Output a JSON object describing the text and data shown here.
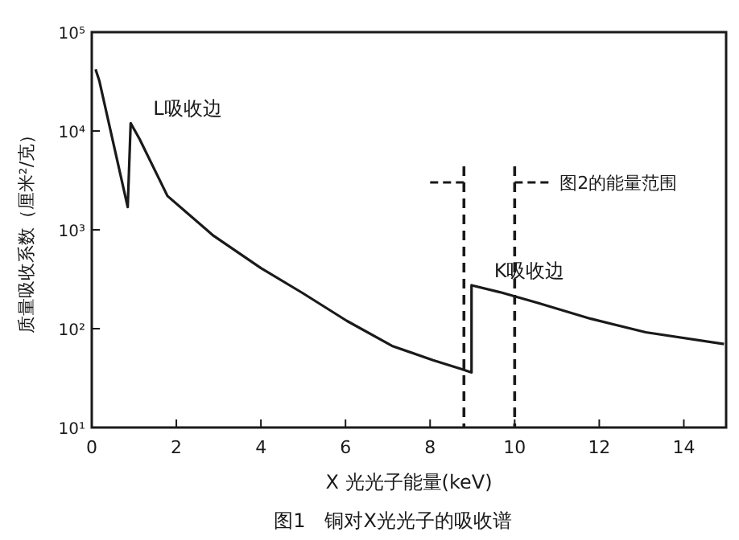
{
  "chart_data": {
    "type": "line",
    "xlabel": "X 光光子能量(keV)",
    "ylabel": "质量吸收系数（厘米²/克）",
    "log": "y",
    "xlim": [
      0,
      15
    ],
    "ylim": [
      10,
      100000
    ],
    "xticks": [
      0,
      2,
      4,
      6,
      8,
      10,
      12,
      14
    ],
    "yticks": [
      {
        "value": 10,
        "label": "10¹"
      },
      {
        "value": 100,
        "label": "10²"
      },
      {
        "value": 1000,
        "label": "10³"
      },
      {
        "value": 10000,
        "label": "10⁴"
      },
      {
        "value": 100000,
        "label": "10⁵"
      }
    ],
    "grid": false,
    "marker": "none",
    "line_style": "solid",
    "series": [
      {
        "color": "#1a1a1a",
        "x": [
          0.09,
          0.18,
          0.85,
          0.92,
          1.13,
          1.79,
          2.88,
          4.0,
          4.98,
          6.03,
          7.1,
          8.07,
          8.74,
          8.98,
          8.98,
          9.65,
          10.55,
          11.8,
          13.1,
          14.95
        ],
        "values": [
          42000,
          32000,
          1700,
          12000,
          8300,
          2200,
          870,
          410,
          230,
          120,
          67,
          48,
          39,
          36,
          275,
          234,
          182,
          126,
          92,
          70
        ]
      }
    ],
    "ref_lines": [
      {
        "axis": "x",
        "value": 8.8,
        "line_style": "dashed",
        "color": "#1a1a1a"
      },
      {
        "axis": "x",
        "value": 10,
        "label": "图2的能量范围",
        "line_style": "dashed",
        "color": "#1a1a1a"
      }
    ],
    "annotations": [
      {
        "text": "L吸收边",
        "x": 0.92,
        "y": 12000
      },
      {
        "text": "K吸收边",
        "x": 8.98,
        "y": 275
      },
      "图1　铜对X光光子的吸收谱"
    ]
  }
}
